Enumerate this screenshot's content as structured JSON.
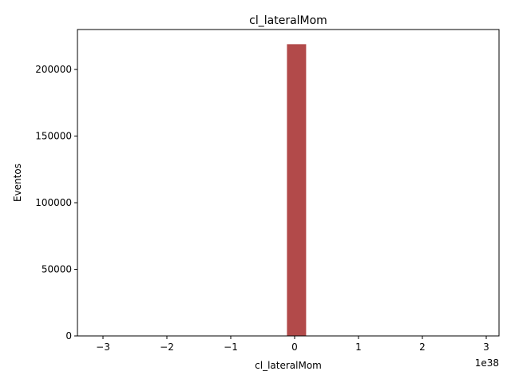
{
  "chart_data": {
    "type": "bar",
    "title": "cl_lateralMom",
    "xlabel": "cl_lateralMom",
    "ylabel": "Eventos",
    "x_offset_label": "1e38",
    "x_unit_scale": 1e+38,
    "xlim": [
      -3.4e+38,
      3.2e+38
    ],
    "ylim": [
      0,
      230000
    ],
    "x_ticks": [
      -3e+38,
      -2e+38,
      -1e+38,
      0,
      1e+38,
      2e+38,
      3e+38
    ],
    "x_tick_labels": [
      "−3",
      "−2",
      "−1",
      "0",
      "1",
      "2",
      "3"
    ],
    "y_ticks": [
      0,
      50000,
      100000,
      150000,
      200000
    ],
    "y_tick_labels": [
      "0",
      "50000",
      "100000",
      "150000",
      "200000"
    ],
    "bars": [
      {
        "x_start": -1.2e+37,
        "x_end": 1.8e+37,
        "value": 219000
      }
    ],
    "bar_color": "#a52a2a",
    "bar_alpha": 0.85,
    "grid": false,
    "legend": "none"
  }
}
